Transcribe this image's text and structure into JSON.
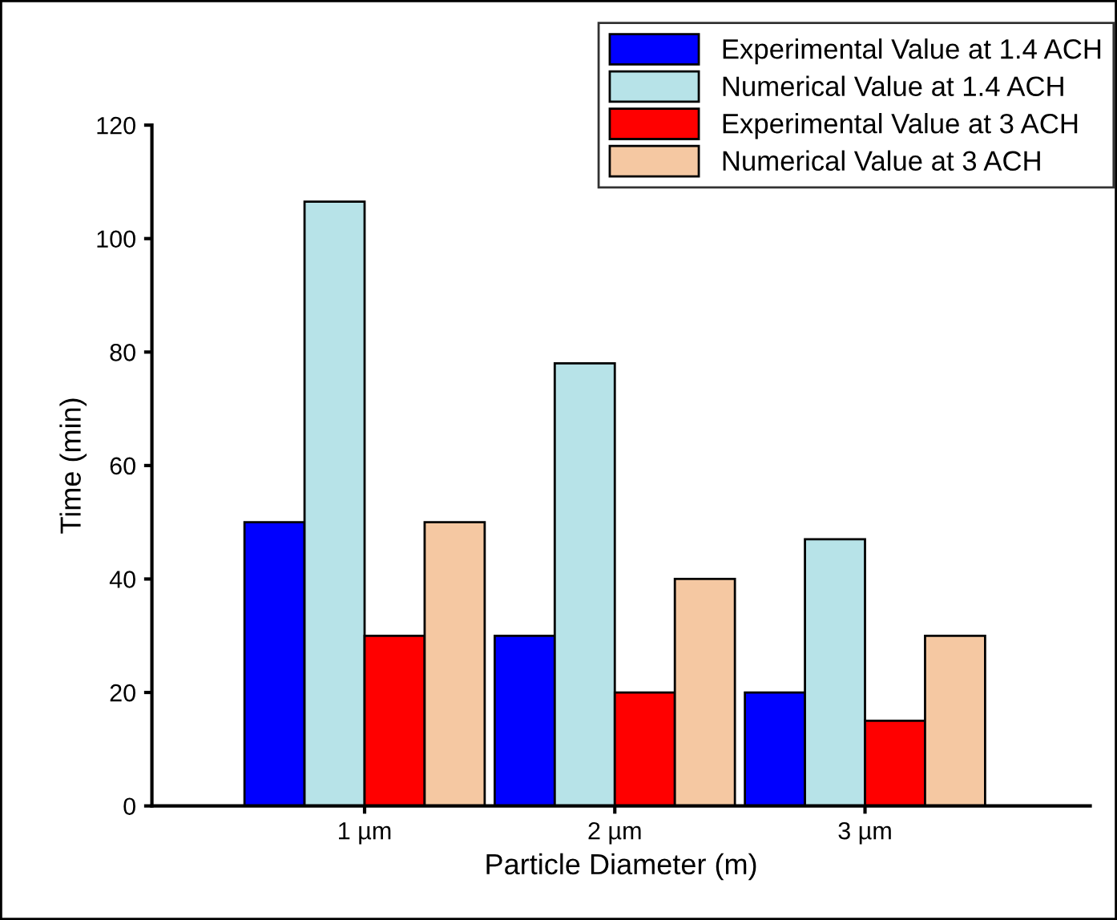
{
  "chart_data": {
    "type": "bar",
    "xlabel": "Particle Diameter (m)",
    "ylabel": "Time (min)",
    "categories": [
      "1 µm",
      "2 µm",
      "3 µm"
    ],
    "series": [
      {
        "name": "Experimental Value at 1.4 ACH",
        "color": "#0000ff",
        "values": [
          50,
          30,
          20
        ]
      },
      {
        "name": "Numerical Value at 1.4 ACH",
        "color": "#b7e3e8",
        "values": [
          106.5,
          78,
          47
        ]
      },
      {
        "name": "Experimental Value at 3 ACH",
        "color": "#ff0000",
        "values": [
          30,
          20,
          15
        ]
      },
      {
        "name": "Numerical Value at 3 ACH",
        "color": "#f5c8a2",
        "values": [
          50,
          40,
          30
        ]
      }
    ],
    "ylim": [
      0,
      120
    ],
    "yticks": [
      0,
      20,
      40,
      60,
      80,
      100,
      120
    ],
    "grid": false,
    "legend": "top right"
  }
}
